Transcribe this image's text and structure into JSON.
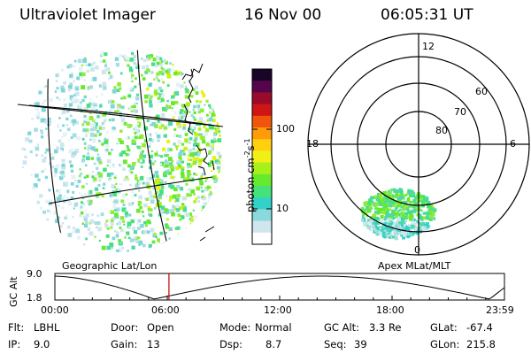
{
  "header": {
    "instrument": "Ultraviolet Imager",
    "date": "16 Nov 00",
    "time": "06:05:31 UT"
  },
  "colorbar": {
    "label": "photon cm-2s-1",
    "ticks": [
      "100",
      "10"
    ],
    "colors": [
      "#ffffff",
      "#cfe6ef",
      "#8ad9dd",
      "#31d2c8",
      "#43e27a",
      "#67ea2c",
      "#a8f01a",
      "#f0f018",
      "#ffcf10",
      "#ff9a08",
      "#f0560b",
      "#d01515",
      "#9a0a2a",
      "#55054a",
      "#180528"
    ]
  },
  "polar": {
    "lat_labels": [
      "60",
      "70",
      "80"
    ],
    "mlt_labels": {
      "top": "12",
      "left": "18",
      "right": "6",
      "bottom": "0"
    }
  },
  "timeline": {
    "left_title": "Geographic Lat/Lon",
    "right_title": "Apex MLat/MLT",
    "ylabel": "GC Alt",
    "ymax": "9.0",
    "ymin": "1.8",
    "ticks": [
      "00:00",
      "06:00",
      "12:00",
      "18:00",
      "23:59"
    ],
    "marker_time_hours": 6.09
  },
  "info": {
    "filter_label": "Flt:",
    "filter_value": "LBHL",
    "ip_label": "IP:",
    "ip_value": "9.0",
    "door_label": "Door:",
    "door_value": "Open",
    "gain_label": "Gain:",
    "gain_value": "13",
    "mode_label": "Mode:",
    "mode_value": "Normal",
    "dsp_label": "Dsp:",
    "dsp_value": "8.7",
    "gcalt_label": "GC Alt:",
    "gcalt_value": "3.3 Re",
    "seq_label": "Seq:",
    "seq_value": "39",
    "glat_label": "GLat:",
    "glat_value": "-67.4",
    "glon_label": "GLon:",
    "glon_value": "215.8"
  }
}
